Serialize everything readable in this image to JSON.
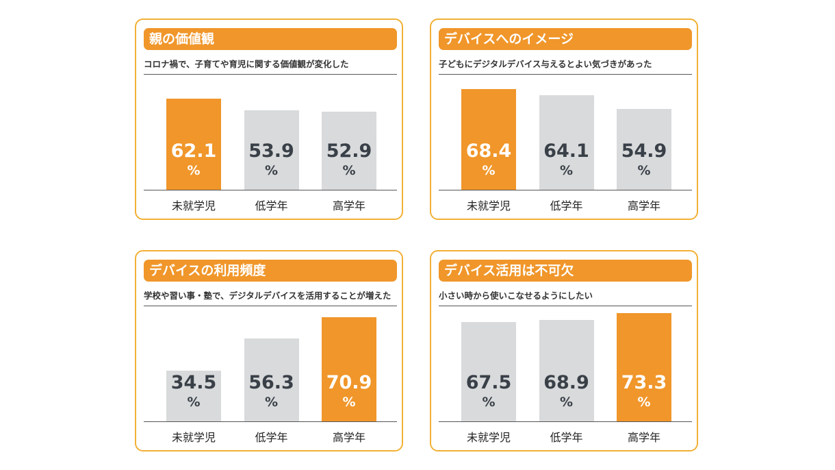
{
  "colors": {
    "highlight": "#F0962A",
    "normal": "#D8DADB",
    "border": "#F2B035",
    "value_on_highlight": "#FFFFFF",
    "value_on_normal": "#3A4048"
  },
  "chart_data": [
    {
      "type": "bar",
      "title": "親の価値観",
      "subtitle": "コロナ禍で、子育てや育児に関する価値観が変化した",
      "categories": [
        "未就学児",
        "低学年",
        "高学年"
      ],
      "values": [
        62.1,
        53.9,
        52.9
      ],
      "labels": [
        "62.1",
        "53.9",
        "52.9"
      ],
      "unit": "%",
      "highlight_index": 0,
      "ylim": [
        0,
        100
      ]
    },
    {
      "type": "bar",
      "title": "デバイスへのイメージ",
      "subtitle": "子どもにデジタルデバイス与えるとよい気づきがあった",
      "categories": [
        "未就学児",
        "低学年",
        "高学年"
      ],
      "values": [
        68.4,
        64.1,
        54.9
      ],
      "labels": [
        "68.4",
        "64.1",
        "54.9"
      ],
      "unit": "%",
      "highlight_index": 0,
      "ylim": [
        0,
        100
      ]
    },
    {
      "type": "bar",
      "title": "デバイスの利用頻度",
      "subtitle": "学校や習い事・塾で、デジタルデバイスを活用することが増えた",
      "categories": [
        "未就学児",
        "低学年",
        "高学年"
      ],
      "values": [
        34.5,
        56.3,
        70.9
      ],
      "labels": [
        "34.5",
        "56.3",
        "70.9"
      ],
      "unit": "%",
      "highlight_index": 2,
      "ylim": [
        0,
        100
      ]
    },
    {
      "type": "bar",
      "title": "デバイス活用は不可欠",
      "subtitle": "小さい時から使いこなせるようにしたい",
      "categories": [
        "未就学児",
        "低学年",
        "高学年"
      ],
      "values": [
        67.5,
        68.9,
        73.3
      ],
      "labels": [
        "67.5",
        "68.9",
        "73.3"
      ],
      "unit": "%",
      "highlight_index": 2,
      "ylim": [
        0,
        100
      ]
    }
  ]
}
